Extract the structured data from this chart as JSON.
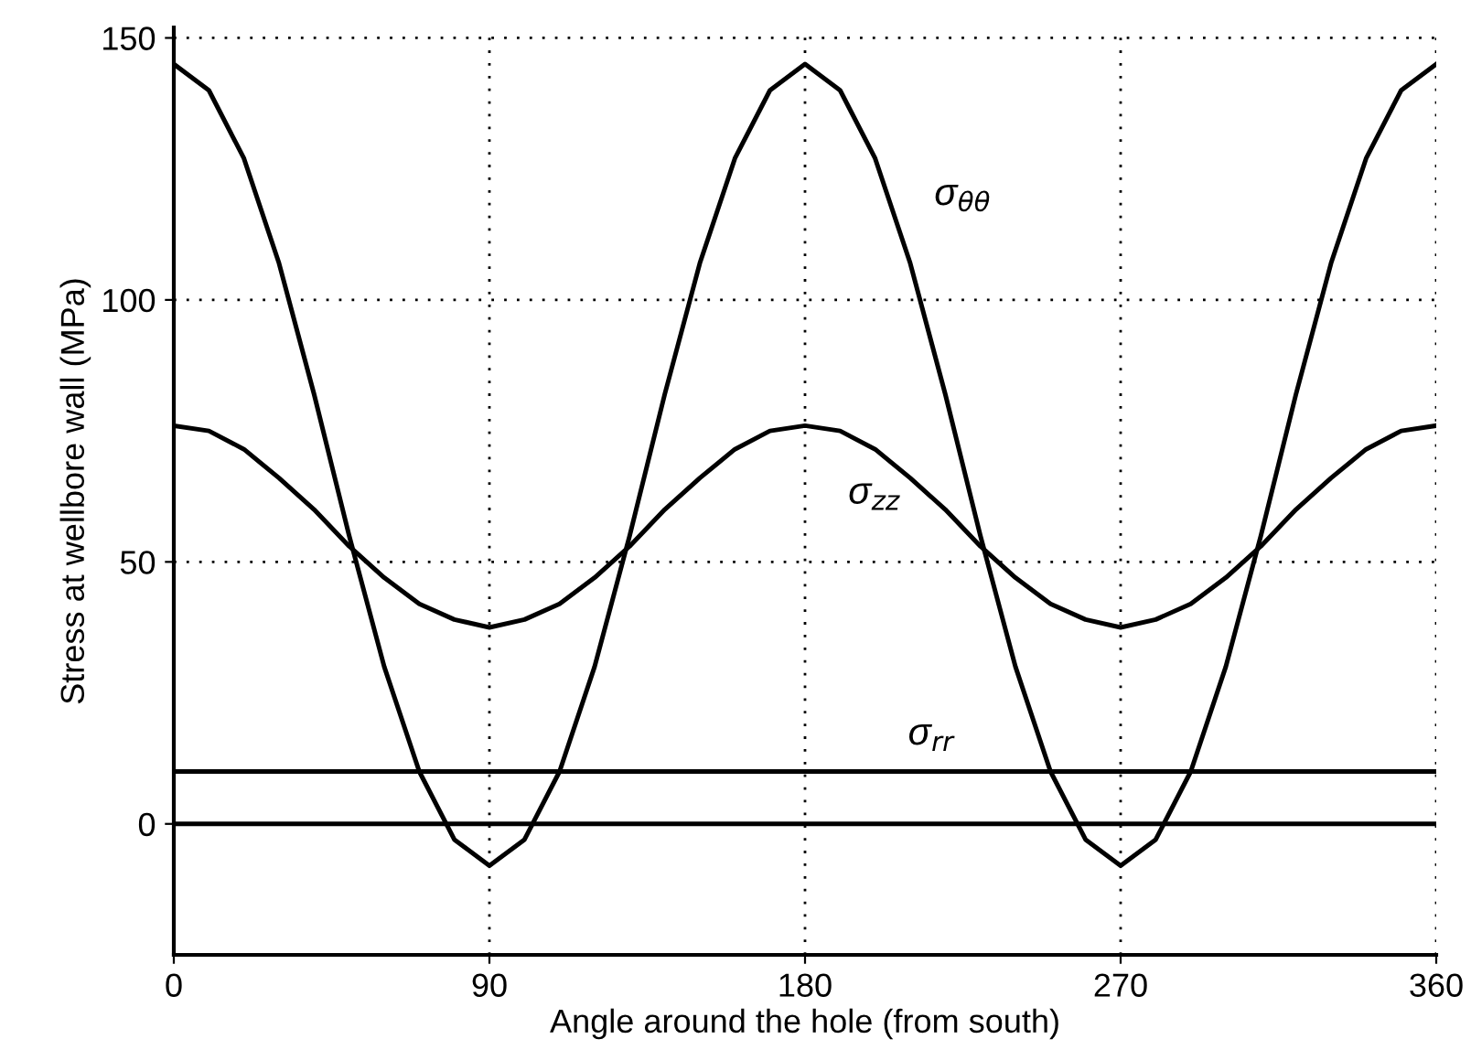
{
  "chart_data": {
    "type": "line",
    "xlabel": "Angle around the hole (from south)",
    "ylabel": "Stress at wellbore wall (MPa)",
    "x": [
      0,
      10,
      20,
      30,
      40,
      50,
      60,
      70,
      80,
      90,
      100,
      110,
      120,
      130,
      140,
      150,
      160,
      170,
      180,
      190,
      200,
      210,
      220,
      230,
      240,
      250,
      260,
      270,
      280,
      290,
      300,
      310,
      320,
      330,
      340,
      350,
      360
    ],
    "series": [
      {
        "name": "σ$_{θθ}$",
        "color": "#000000",
        "values": [
          145,
          140,
          127,
          107,
          82,
          55,
          30,
          10,
          -3,
          -8,
          -3,
          10,
          30,
          55,
          82,
          107,
          127,
          140,
          145,
          140,
          127,
          107,
          82,
          55,
          30,
          10,
          -3,
          -8,
          -3,
          10,
          30,
          55,
          82,
          107,
          127,
          140,
          145
        ]
      },
      {
        "name": "σ$_{zz}$",
        "color": "#000000",
        "values": [
          76,
          75,
          71.5,
          66,
          60,
          53,
          47,
          42,
          39,
          37.5,
          39,
          42,
          47,
          53,
          60,
          66,
          71.5,
          75,
          76,
          75,
          71.5,
          66,
          60,
          53,
          47,
          42,
          39,
          37.5,
          39,
          42,
          47,
          53,
          60,
          66,
          71.5,
          75,
          76
        ]
      },
      {
        "name": "σ$_{rr}$",
        "color": "#000000",
        "values": [
          10,
          10,
          10,
          10,
          10,
          10,
          10,
          10,
          10,
          10,
          10,
          10,
          10,
          10,
          10,
          10,
          10,
          10,
          10,
          10,
          10,
          10,
          10,
          10,
          10,
          10,
          10,
          10,
          10,
          10,
          10,
          10,
          10,
          10,
          10,
          10,
          10
        ]
      }
    ],
    "ref_lines": [
      {
        "axis": "y",
        "value": 0,
        "color": "#000000"
      }
    ],
    "xlim": [
      0,
      360
    ],
    "xticks": [
      0,
      90,
      180,
      270,
      360
    ],
    "ylim": [
      -25,
      152
    ],
    "yticks": [
      0,
      50,
      100,
      150
    ],
    "grid": true,
    "legend": false,
    "marker": "none",
    "line_style": "solid"
  }
}
